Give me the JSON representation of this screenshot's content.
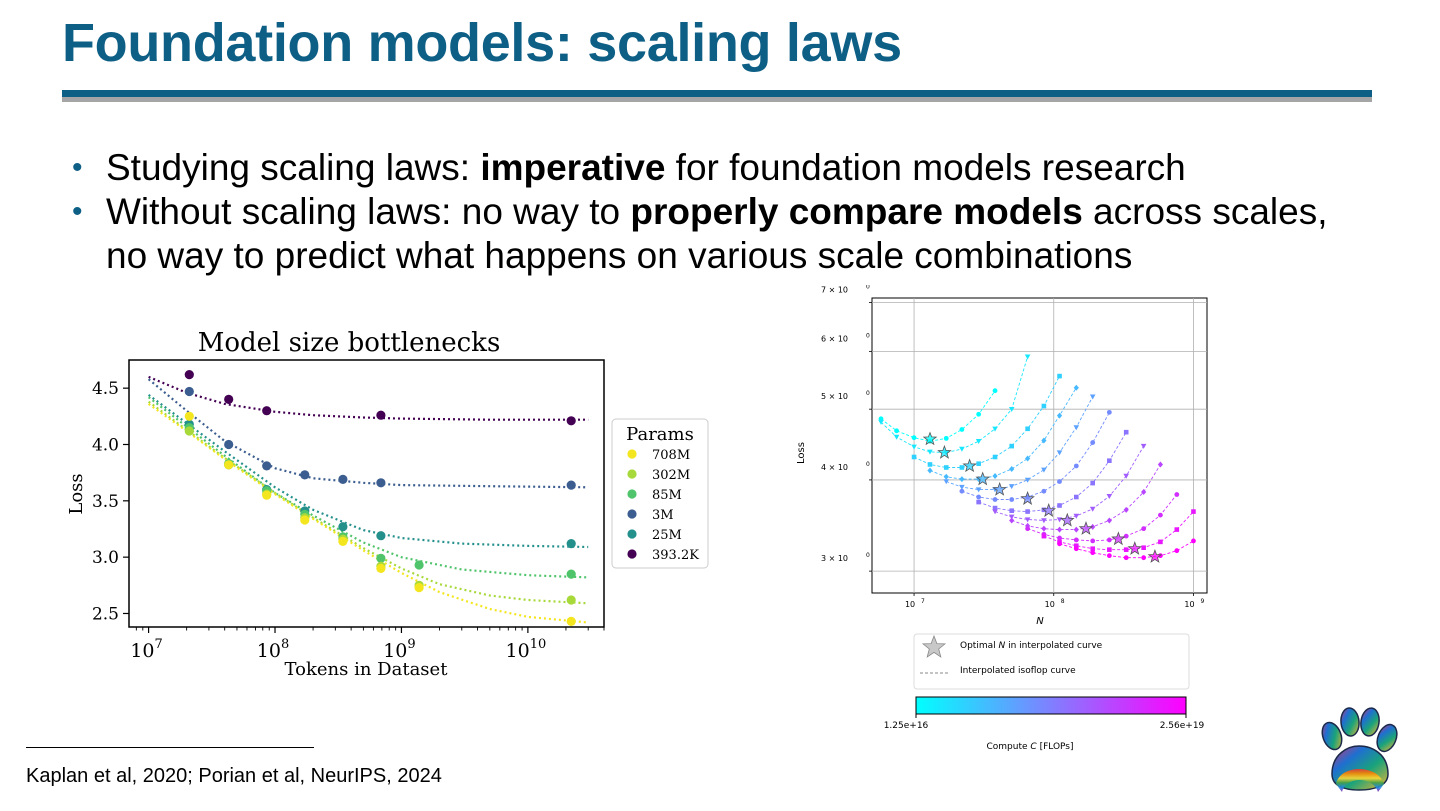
{
  "slide": {
    "title": "Foundation models: scaling laws",
    "bullets": [
      [
        {
          "text": "Studying scaling laws: ",
          "bold": false
        },
        {
          "text": "imperative",
          "bold": true
        },
        {
          "text": " for foundation models research",
          "bold": false
        }
      ],
      [
        {
          "text": "Without scaling laws: no way to ",
          "bold": false
        },
        {
          "text": "properly compare models",
          "bold": true
        },
        {
          "text": " across scales, no way to predict what happens on various scale combinations",
          "bold": false
        }
      ]
    ],
    "footnote": "Kaplan et al, 2020; Porian et al, NeurIPS, 2024",
    "bullet_color": "#0e5f86",
    "title_color": "#0e5f86",
    "logo_icon": "rainbow-paw-icon"
  },
  "chart_data": [
    {
      "type": "scatter",
      "title": "Model size bottlenecks",
      "xlabel": "Tokens in Dataset",
      "ylabel": "Loss",
      "xscale": "log",
      "xlim": [
        7000000,
        40000000000
      ],
      "ylim": [
        2.38,
        4.75
      ],
      "xticks": [
        {
          "value": 10000000,
          "base": "10",
          "exp": "7"
        },
        {
          "value": 100000000,
          "base": "10",
          "exp": "8"
        },
        {
          "value": 1000000000,
          "base": "10",
          "exp": "9"
        },
        {
          "value": 10000000000,
          "base": "10",
          "exp": "10"
        }
      ],
      "yticks": [
        {
          "value": 2.5,
          "label": "2.5"
        },
        {
          "value": 3.0,
          "label": "3.0"
        },
        {
          "value": 3.5,
          "label": "3.5"
        },
        {
          "value": 4.0,
          "label": "4.0"
        },
        {
          "value": 4.5,
          "label": "4.5"
        }
      ],
      "legend_title": "Params",
      "legend_position": "right",
      "x": [
        21000000,
        43000000,
        86000000,
        172000000,
        344000000,
        688000000,
        1380000000,
        22000000000
      ],
      "series": [
        {
          "name": "708M",
          "color": "#f4e61e",
          "values": [
            4.25,
            3.82,
            3.55,
            3.33,
            3.14,
            2.9,
            2.73,
            2.43
          ],
          "fit": {
            "x": [
              10000000,
              20000000,
              40000000,
              100000000,
              200000000,
              500000000,
              1000000000,
              2000000000,
              5000000000,
              10000000000,
              30000000000
            ],
            "y": [
              4.36,
              4.12,
              3.87,
              3.56,
              3.34,
              3.06,
              2.86,
              2.69,
              2.54,
              2.47,
              2.42
            ]
          }
        },
        {
          "name": "302M",
          "color": "#a8d93a",
          "values": [
            4.12,
            3.82,
            3.56,
            3.35,
            3.16,
            2.92,
            2.75,
            2.62
          ],
          "fit": {
            "x": [
              10000000,
              20000000,
              40000000,
              100000000,
              200000000,
              500000000,
              1000000000,
              2000000000,
              5000000000,
              10000000000,
              30000000000
            ],
            "y": [
              4.38,
              4.13,
              3.88,
              3.57,
              3.35,
              3.08,
              2.9,
              2.76,
              2.66,
              2.62,
              2.59
            ]
          }
        },
        {
          "name": "85M",
          "color": "#4fc46a",
          "values": [
            4.15,
            3.83,
            3.59,
            3.38,
            3.18,
            2.99,
            2.93,
            2.85
          ],
          "fit": {
            "x": [
              10000000,
              20000000,
              40000000,
              100000000,
              200000000,
              500000000,
              1000000000,
              3000000000,
              10000000000,
              30000000000
            ],
            "y": [
              4.42,
              4.16,
              3.9,
              3.57,
              3.37,
              3.13,
              3.0,
              2.89,
              2.84,
              2.82
            ]
          }
        },
        {
          "name": "3M",
          "color": "#3b5d8f",
          "values": [
            4.47,
            4.0,
            3.81,
            3.73,
            3.69,
            3.66,
            null,
            3.64
          ],
          "fit": {
            "x": [
              10000000,
              20000000,
              40000000,
              100000000,
              200000000,
              500000000,
              1000000000,
              5000000000,
              30000000000
            ],
            "y": [
              4.58,
              4.3,
              4.03,
              3.79,
              3.7,
              3.66,
              3.64,
              3.63,
              3.62
            ]
          }
        },
        {
          "name": "25M",
          "color": "#24908c",
          "values": [
            4.18,
            3.82,
            3.6,
            3.41,
            3.27,
            3.19,
            null,
            3.12
          ],
          "fit": {
            "x": [
              10000000,
              20000000,
              40000000,
              100000000,
              200000000,
              500000000,
              1000000000,
              3000000000,
              10000000000,
              30000000000
            ],
            "y": [
              4.44,
              4.19,
              3.94,
              3.62,
              3.42,
              3.24,
              3.17,
              3.12,
              3.1,
              3.09
            ]
          }
        },
        {
          "name": "393.2K",
          "color": "#440154",
          "values": [
            4.62,
            4.4,
            4.3,
            null,
            null,
            4.26,
            null,
            4.21
          ],
          "fit": {
            "x": [
              10000000,
              20000000,
              40000000,
              100000000,
              200000000,
              500000000,
              1000000000,
              5000000000,
              30000000000
            ],
            "y": [
              4.6,
              4.46,
              4.36,
              4.29,
              4.26,
              4.24,
              4.23,
              4.22,
              4.22
            ]
          }
        }
      ]
    },
    {
      "type": "line",
      "xlabel": "N",
      "ylabel": "Loss",
      "xscale": "log",
      "yscale": "log",
      "xlim": [
        5000000,
        1250000000
      ],
      "ylim": [
        2.8,
        7.1
      ],
      "xticks": [
        {
          "value": 10000000,
          "base": "10",
          "exp": "7"
        },
        {
          "value": 100000000,
          "base": "10",
          "exp": "8"
        },
        {
          "value": 1000000000,
          "base": "10",
          "exp": "9"
        }
      ],
      "yticks": [
        {
          "value": 3,
          "label": "3 × 10",
          "exp": "0"
        },
        {
          "value": 4,
          "label": "4 × 10",
          "exp": "0"
        },
        {
          "value": 5,
          "label": "5 × 10",
          "exp": "0"
        },
        {
          "value": 6,
          "label": "6 × 10",
          "exp": "0"
        },
        {
          "value": 7,
          "label": "7 × 10",
          "exp": "0"
        }
      ],
      "legend": [
        {
          "label_prefix": "Optimal ",
          "label_var": "N",
          "label_suffix": " in interpolated curve",
          "icon": "star-icon"
        },
        {
          "label": "Interpolated isoflop curve",
          "icon": "dashed-line-icon"
        }
      ],
      "colorbar": {
        "min_label": "1.25e+16",
        "max_label": "2.56e+19",
        "label_prefix": "Compute ",
        "label_var": "C",
        "label_suffix": " [FLOPs]",
        "from": "#00ffff",
        "to": "#ff00ff"
      },
      "series": [
        {
          "x": [
            5800000,
            7500000,
            10000000,
            13000000,
            17000000,
            22000000,
            29000000,
            38000000
          ],
          "values": [
            4.85,
            4.67,
            4.57,
            4.52,
            4.56,
            4.69,
            4.92,
            5.3
          ],
          "star": {
            "x": 13000000,
            "y": 4.55
          }
        },
        {
          "x": [
            5800000,
            7500000,
            10000000,
            13000000,
            17000000,
            22000000,
            29000000,
            38000000,
            50000000,
            65000000
          ],
          "values": [
            4.8,
            4.58,
            4.44,
            4.37,
            4.36,
            4.41,
            4.52,
            4.7,
            5.0,
            5.9
          ],
          "star": {
            "x": 16500000,
            "y": 4.36
          }
        },
        {
          "x": [
            10000000,
            13000000,
            17000000,
            22000000,
            29000000,
            38000000,
            50000000,
            65000000,
            85000000,
            110000000
          ],
          "values": [
            4.3,
            4.2,
            4.16,
            4.16,
            4.21,
            4.3,
            4.45,
            4.7,
            5.05,
            5.55
          ],
          "star": {
            "x": 25000000,
            "y": 4.18
          }
        },
        {
          "x": [
            13000000,
            17000000,
            22000000,
            29000000,
            38000000,
            50000000,
            65000000,
            85000000,
            110000000,
            145000000
          ],
          "values": [
            4.12,
            4.04,
            4.01,
            4.01,
            4.05,
            4.14,
            4.28,
            4.53,
            4.9,
            5.35
          ],
          "star": {
            "x": 31000000,
            "y": 4.01
          }
        },
        {
          "x": [
            17000000,
            22000000,
            29000000,
            38000000,
            50000000,
            65000000,
            85000000,
            110000000,
            145000000,
            190000000
          ],
          "values": [
            3.98,
            3.91,
            3.88,
            3.88,
            3.92,
            4.0,
            4.13,
            4.36,
            4.72,
            5.2
          ],
          "star": {
            "x": 41000000,
            "y": 3.88
          }
        },
        {
          "x": [
            22000000,
            29000000,
            38000000,
            50000000,
            65000000,
            85000000,
            110000000,
            145000000,
            190000000,
            250000000
          ],
          "values": [
            3.86,
            3.79,
            3.76,
            3.76,
            3.79,
            3.86,
            3.98,
            4.18,
            4.5,
            4.95
          ],
          "star": {
            "x": 65000000,
            "y": 3.77
          }
        },
        {
          "x": [
            29000000,
            38000000,
            50000000,
            65000000,
            85000000,
            110000000,
            145000000,
            190000000,
            250000000,
            330000000
          ],
          "values": [
            3.73,
            3.66,
            3.63,
            3.62,
            3.64,
            3.69,
            3.79,
            3.96,
            4.25,
            4.65
          ],
          "star": {
            "x": 92000000,
            "y": 3.63
          }
        },
        {
          "x": [
            38000000,
            50000000,
            65000000,
            85000000,
            110000000,
            145000000,
            190000000,
            250000000,
            330000000,
            440000000
          ],
          "values": [
            3.62,
            3.56,
            3.53,
            3.52,
            3.53,
            3.57,
            3.65,
            3.8,
            4.05,
            4.45
          ],
          "star": {
            "x": 125000000,
            "y": 3.52
          }
        },
        {
          "x": [
            50000000,
            65000000,
            85000000,
            110000000,
            145000000,
            190000000,
            250000000,
            330000000,
            440000000,
            580000000
          ],
          "values": [
            3.52,
            3.46,
            3.43,
            3.42,
            3.42,
            3.45,
            3.52,
            3.64,
            3.85,
            4.2
          ],
          "star": {
            "x": 170000000,
            "y": 3.43
          }
        },
        {
          "x": [
            65000000,
            85000000,
            110000000,
            145000000,
            190000000,
            250000000,
            330000000,
            440000000,
            580000000,
            760000000
          ],
          "values": [
            3.43,
            3.37,
            3.33,
            3.31,
            3.3,
            3.31,
            3.35,
            3.43,
            3.58,
            3.82
          ],
          "star": {
            "x": 290000000,
            "y": 3.32
          }
        },
        {
          "x": [
            85000000,
            110000000,
            145000000,
            190000000,
            250000000,
            330000000,
            440000000,
            580000000,
            760000000,
            1000000000
          ],
          "values": [
            3.35,
            3.29,
            3.25,
            3.22,
            3.21,
            3.21,
            3.23,
            3.29,
            3.42,
            3.62
          ],
          "star": {
            "x": 380000000,
            "y": 3.22
          }
        },
        {
          "x": [
            110000000,
            145000000,
            190000000,
            250000000,
            330000000,
            440000000,
            580000000,
            760000000,
            1000000000
          ],
          "values": [
            3.27,
            3.22,
            3.18,
            3.15,
            3.13,
            3.13,
            3.15,
            3.2,
            3.3
          ],
          "star": {
            "x": 530000000,
            "y": 3.14
          }
        }
      ]
    }
  ]
}
